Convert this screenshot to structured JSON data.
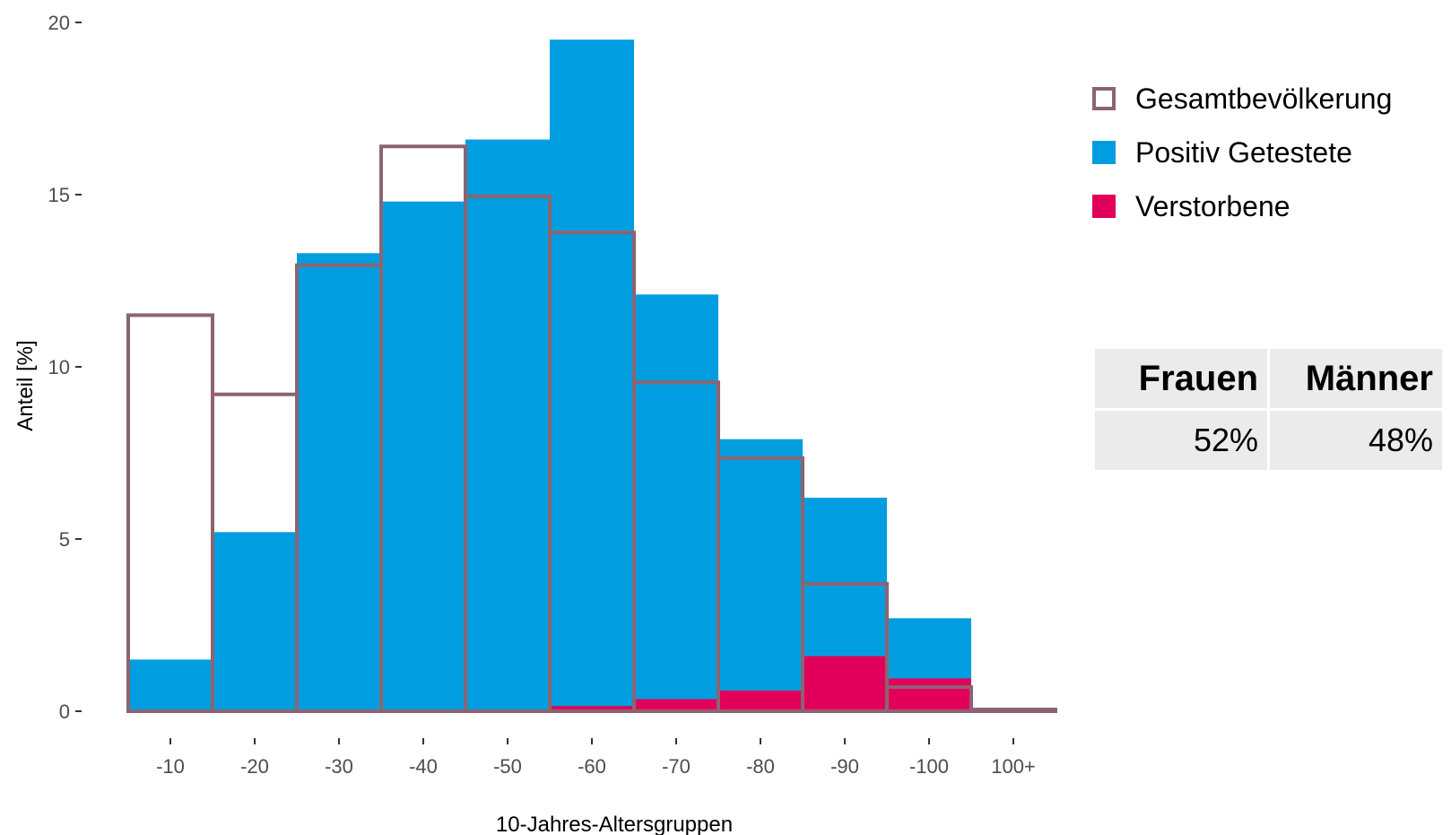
{
  "chart_data": {
    "type": "bar",
    "xlabel": "10-Jahres-Altersgruppen",
    "ylabel": "Anteil [%]",
    "categories": [
      "-10",
      "-20",
      "-30",
      "-40",
      "-50",
      "-60",
      "-70",
      "-80",
      "-90",
      "-100",
      "100+"
    ],
    "yticks": [
      0,
      5,
      10,
      15,
      20
    ],
    "ylim": [
      0,
      20
    ],
    "grid": false,
    "legend_position": "right",
    "series": [
      {
        "name": "Positiv Getestete",
        "style": "filled",
        "color": "#009ee0",
        "values": [
          1.5,
          5.2,
          13.3,
          14.8,
          16.6,
          19.5,
          12.1,
          7.9,
          6.2,
          2.7,
          0.0
        ]
      },
      {
        "name": "Verstorbene",
        "style": "filled",
        "color": "#e2005a",
        "values": [
          0.0,
          0.0,
          0.0,
          0.0,
          0.0,
          0.15,
          0.35,
          0.6,
          1.6,
          0.95,
          0.0
        ]
      },
      {
        "name": "Gesamtbevölkerung",
        "style": "outline",
        "color": "#8c6470",
        "values": [
          11.5,
          9.2,
          12.95,
          16.4,
          14.95,
          13.9,
          9.55,
          7.35,
          3.7,
          0.7,
          0.05
        ]
      }
    ]
  },
  "sex_table": {
    "headers": [
      "Frauen",
      "Männer"
    ],
    "values": [
      "52%",
      "48%"
    ]
  }
}
